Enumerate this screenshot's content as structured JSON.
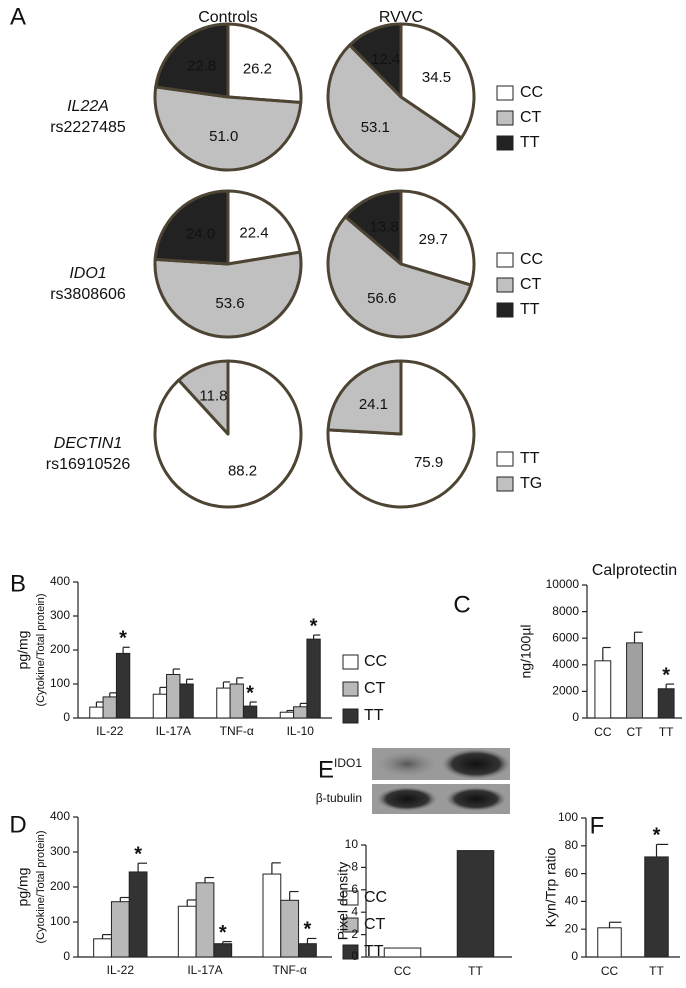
{
  "chart_data": [
    {
      "type": "pie",
      "panel": "A",
      "columns": [
        "Controls",
        "RVVC"
      ],
      "outline": "#4d4433",
      "rows": [
        {
          "label": "IL22A",
          "sublabel": "rs2227485",
          "categories": [
            "CC",
            "CT",
            "TT"
          ],
          "colors": [
            "#ffffff",
            "#c0c0c0",
            "#222222"
          ],
          "values": [
            [
              26.2,
              51.0,
              22.8
            ],
            [
              34.5,
              53.1,
              12.4
            ]
          ],
          "value_labels": [
            [
              "26.2",
              "51.0",
              "22.8"
            ],
            [
              "34.5",
              "53.1",
              "12.4"
            ]
          ]
        },
        {
          "label": "IDO1",
          "sublabel": "rs3808606",
          "categories": [
            "CC",
            "CT",
            "TT"
          ],
          "colors": [
            "#ffffff",
            "#c0c0c0",
            "#222222"
          ],
          "values": [
            [
              22.4,
              53.6,
              24.0
            ],
            [
              29.7,
              56.6,
              13.8
            ]
          ],
          "value_labels": [
            [
              "22.4",
              "53.6",
              "24.0"
            ],
            [
              "29.7",
              "56.6",
              "13.8"
            ]
          ]
        },
        {
          "label": "DECTIN1",
          "sublabel": "rs16910526",
          "categories": [
            "TT",
            "TG"
          ],
          "colors": [
            "#ffffff",
            "#c0c0c0"
          ],
          "values": [
            [
              88.2,
              11.8
            ],
            [
              75.9,
              24.1
            ]
          ],
          "value_labels": [
            [
              "88.2",
              "11.8"
            ],
            [
              "75.9",
              "24.1"
            ]
          ]
        }
      ]
    },
    {
      "type": "grouped_bar",
      "panel": "B",
      "ylabel": "pg/mg",
      "ylabel2": "(Cytokine/Total protein)",
      "categories": [
        "IL-22",
        "IL-17A",
        "TNF-α",
        "IL-10"
      ],
      "series": [
        {
          "name": "CC",
          "color": "#ffffff",
          "values": [
            32,
            70,
            88,
            17
          ],
          "errors": [
            15,
            20,
            18,
            5
          ]
        },
        {
          "name": "CT",
          "color": "#b8b8b8",
          "values": [
            62,
            128,
            100,
            33
          ],
          "errors": [
            12,
            16,
            18,
            10
          ]
        },
        {
          "name": "TT",
          "color": "#333333",
          "values": [
            190,
            100,
            35,
            232
          ],
          "errors": [
            18,
            14,
            12,
            12
          ],
          "significance": [
            "*",
            null,
            "*",
            "*"
          ]
        }
      ],
      "ylim": [
        0,
        400
      ],
      "yticks": [
        0,
        100,
        200,
        300,
        400
      ]
    },
    {
      "type": "bar",
      "panel": "C",
      "title": "Calprotectin",
      "ylabel": "ng/100µl",
      "categories": [
        "CC",
        "CT",
        "TT"
      ],
      "colors": [
        "#ffffff",
        "#a0a0a0",
        "#333333"
      ],
      "values": [
        4300,
        5650,
        2200
      ],
      "errors": [
        1000,
        800,
        350
      ],
      "significance": [
        null,
        null,
        "*"
      ],
      "ylim": [
        0,
        10000
      ],
      "yticks": [
        0,
        2000,
        4000,
        6000,
        8000,
        10000
      ]
    },
    {
      "type": "grouped_bar",
      "panel": "D",
      "ylabel": "pg/mg",
      "ylabel2": "(Cytokine/Total protein)",
      "categories": [
        "IL-22",
        "IL-17A",
        "TNF-α"
      ],
      "series": [
        {
          "name": "CC",
          "color": "#ffffff",
          "values": [
            52,
            145,
            237
          ],
          "errors": [
            12,
            18,
            32
          ]
        },
        {
          "name": "CT",
          "color": "#b8b8b8",
          "values": [
            158,
            212,
            162
          ],
          "errors": [
            12,
            15,
            25
          ]
        },
        {
          "name": "TT",
          "color": "#333333",
          "values": [
            243,
            38,
            38
          ],
          "errors": [
            25,
            6,
            15
          ],
          "significance": [
            "*",
            "*",
            "*"
          ]
        }
      ],
      "ylim": [
        0,
        400
      ],
      "yticks": [
        0,
        100,
        200,
        300,
        400
      ]
    },
    {
      "type": "bar",
      "panel": "E",
      "blot_labels": [
        "IDO1",
        "β-tubulin"
      ],
      "ylabel": "Pixel density",
      "categories": [
        "CC",
        "TT"
      ],
      "colors": [
        "#ffffff",
        "#333333"
      ],
      "values": [
        0.8,
        9.5
      ],
      "ylim": [
        0,
        10
      ],
      "yticks": [
        0,
        2,
        4,
        6,
        8,
        10
      ]
    },
    {
      "type": "bar",
      "panel": "F",
      "ylabel": "Kyn/Trp ratio",
      "categories": [
        "CC",
        "TT"
      ],
      "colors": [
        "#ffffff",
        "#333333"
      ],
      "values": [
        21,
        72
      ],
      "errors": [
        4,
        9
      ],
      "significance": [
        null,
        "*"
      ],
      "ylim": [
        0,
        100
      ],
      "yticks": [
        0,
        20,
        40,
        60,
        80,
        100
      ]
    }
  ]
}
